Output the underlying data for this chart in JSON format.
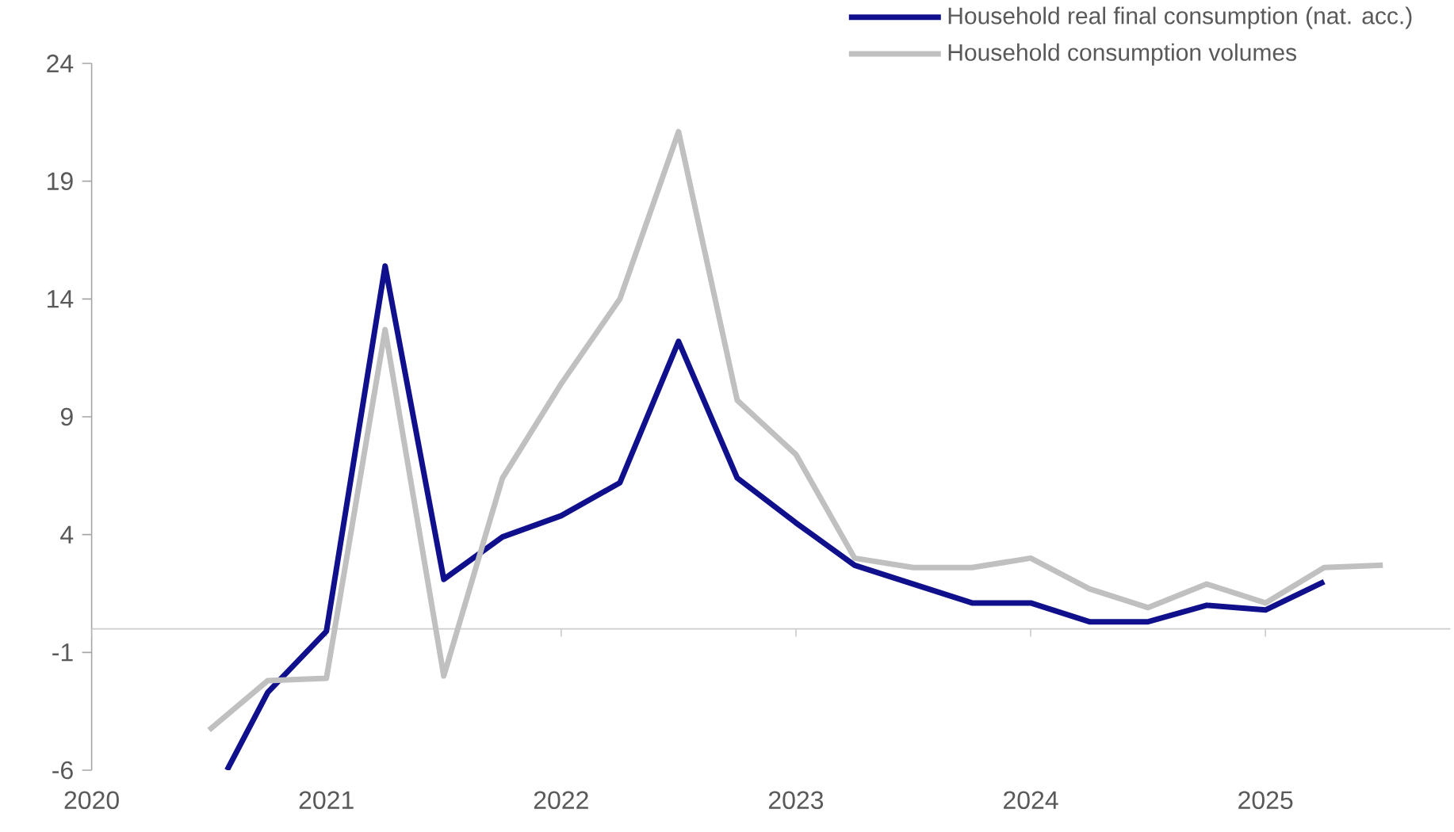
{
  "chart_data": {
    "type": "line",
    "x": [
      "2020-07",
      "2020-10",
      "2021-01",
      "2021-04",
      "2021-07",
      "2021-10",
      "2022-01",
      "2022-04",
      "2022-07",
      "2022-10",
      "2023-01",
      "2023-04",
      "2023-07",
      "2023-10",
      "2024-01",
      "2024-04",
      "2024-07",
      "2024-10",
      "2025-01",
      "2025-04",
      "2025-07"
    ],
    "series": [
      {
        "name": "Household real final consumption (nat. acc.)",
        "color": "#10108c",
        "x": [
          "2020-07-29",
          "2020-10",
          "2021-01",
          "2021-04",
          "2021-07",
          "2021-10",
          "2022-01",
          "2022-04",
          "2022-07",
          "2022-10",
          "2023-01",
          "2023-04",
          "2023-07",
          "2023-10",
          "2024-01",
          "2024-04",
          "2024-07",
          "2024-10",
          "2025-01",
          "2025-04"
        ],
        "values": [
          -6,
          -2.7,
          -0.1,
          15.4,
          2.1,
          3.9,
          4.8,
          6.2,
          12.2,
          6.4,
          4.5,
          2.7,
          1.9,
          1.1,
          1.1,
          0.3,
          0.3,
          1.0,
          0.8,
          2.0
        ]
      },
      {
        "name": "Household consumption volumes",
        "color": "#c0c0c0",
        "values": [
          -4.3,
          -2.2,
          -2.1,
          12.7,
          -2.0,
          6.4,
          10.4,
          14.0,
          21.1,
          9.7,
          7.4,
          3.0,
          2.6,
          2.6,
          3.0,
          1.7,
          0.9,
          1.9,
          1.1,
          2.6,
          2.7
        ]
      }
    ],
    "xlim": [
      "2020",
      "2025-10-15"
    ],
    "xticks": [
      "2020",
      "2021",
      "2022",
      "2023",
      "2024",
      "2025"
    ],
    "ylim": [
      -6,
      24
    ],
    "yticks": [
      -6,
      -1,
      4,
      9,
      14,
      19,
      24
    ],
    "legend": "top right"
  }
}
